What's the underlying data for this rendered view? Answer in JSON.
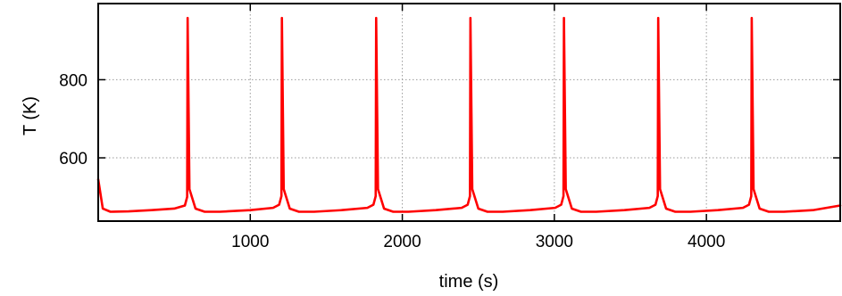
{
  "chart_data": {
    "type": "line",
    "xlabel": "time (s)",
    "ylabel": "T (K)",
    "xlim": [
      0,
      4880
    ],
    "ylim": [
      438,
      995
    ],
    "x_ticks": [
      1000,
      2000,
      3000,
      4000
    ],
    "y_ticks": [
      600,
      800
    ],
    "grid": true,
    "grid_style": "dotted",
    "line_color": "#ff0000",
    "baseline_K": 462,
    "start_value_K": 545,
    "peak_K": 958,
    "spike_times_s": [
      585,
      1205,
      1825,
      2445,
      3060,
      3680,
      4295
    ],
    "series": [
      {
        "x": [
          0,
          30,
          80,
          200,
          350,
          500,
          570,
          585,
          588,
          600,
          640,
          700,
          800,
          1000,
          1150,
          1190,
          1205,
          1208,
          1220,
          1260,
          1320,
          1420,
          1600,
          1770,
          1810,
          1825,
          1828,
          1840,
          1880,
          1940,
          2040,
          2220,
          2390,
          2430,
          2445,
          2448,
          2460,
          2500,
          2560,
          2660,
          2840,
          3005,
          3045,
          3060,
          3063,
          3075,
          3115,
          3175,
          3275,
          3460,
          3625,
          3665,
          3680,
          3683,
          3695,
          3735,
          3795,
          3895,
          4075,
          4240,
          4280,
          4295,
          4298,
          4310,
          4350,
          4410,
          4510,
          4700,
          4880
        ],
        "y": [
          545,
          470,
          462,
          463,
          466,
          470,
          478,
          500,
          958,
          520,
          470,
          462,
          462,
          466,
          472,
          480,
          502,
          958,
          520,
          470,
          462,
          462,
          466,
          472,
          480,
          502,
          958,
          520,
          470,
          462,
          462,
          466,
          472,
          480,
          502,
          958,
          520,
          470,
          462,
          462,
          466,
          472,
          480,
          502,
          958,
          520,
          470,
          462,
          462,
          466,
          472,
          480,
          502,
          958,
          520,
          470,
          462,
          462,
          466,
          472,
          480,
          502,
          958,
          520,
          470,
          462,
          462,
          466,
          478
        ]
      }
    ]
  }
}
